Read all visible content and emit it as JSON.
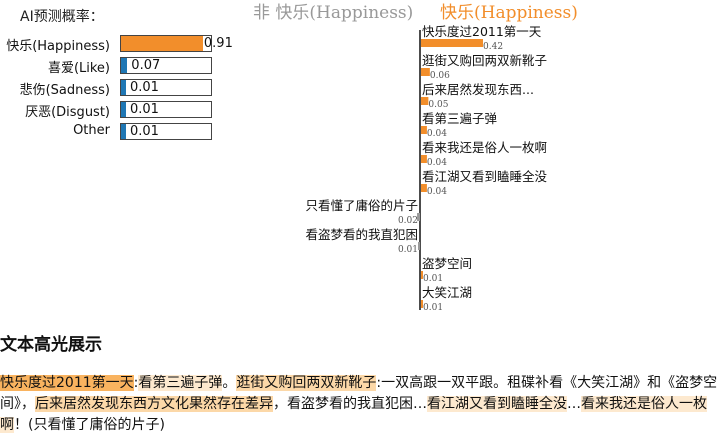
{
  "probability_panel": {
    "title": "AI预测概率：",
    "rows": [
      {
        "label": "快乐(Happiness)",
        "value": 0.91,
        "value_text": "0.91",
        "color": "#f28e2b"
      },
      {
        "label": "喜爱(Like)",
        "value": 0.07,
        "value_text": "0.07",
        "color": "#1f77b4"
      },
      {
        "label": "悲伤(Sadness)",
        "value": 0.01,
        "value_text": "0.01",
        "color": "#1f77b4"
      },
      {
        "label": "厌恶(Disgust)",
        "value": 0.01,
        "value_text": "0.01",
        "color": "#1f77b4"
      },
      {
        "label": "Other",
        "value": 0.01,
        "value_text": "0.01",
        "color": "#1f77b4"
      }
    ]
  },
  "contribution_chart": {
    "negative_title": "非 快乐(Happiness)",
    "positive_title": "快乐(Happiness)",
    "negative_color": "#999999",
    "positive_color": "#f28e2b"
  },
  "chart_data": {
    "type": "bar",
    "orientation": "horizontal-diverging",
    "title": "",
    "categories": [
      "快乐度过2011第一天",
      "逛街又购回两双新靴子",
      "后来居然发现东西...",
      "看第三遍子弹",
      "看来我还是俗人一枚啊",
      "看江湖又看到瞌睡全没",
      "只看懂了庸俗的片子",
      "看盗梦看的我直犯困",
      "盗梦空间",
      "大笑江湖"
    ],
    "values": [
      0.42,
      0.06,
      0.05,
      0.04,
      0.04,
      0.04,
      -0.02,
      -0.01,
      0.01,
      0.01
    ],
    "value_labels": [
      "0.42",
      "0.06",
      "0.05",
      "0.04",
      "0.04",
      "0.04",
      "0.02",
      "0.01",
      "0.01",
      "0.01"
    ],
    "xlim": [
      -0.45,
      0.45
    ]
  },
  "highlight_section": {
    "title": "文本高光展示",
    "segments": [
      {
        "text": "快乐度过2011第一天",
        "level": "strong"
      },
      {
        "text": ":",
        "level": "none"
      },
      {
        "text": "看第三遍子弹",
        "level": "light"
      },
      {
        "text": "。",
        "level": "none"
      },
      {
        "text": "逛街又购回两双新靴子",
        "level": "mid"
      },
      {
        "text": ":一双高跟一双平跟。租碟补看《大笑江湖》和《盗梦空间》，",
        "level": "none"
      },
      {
        "text": "后来居然发现东西方文化果然存在差异",
        "level": "mid"
      },
      {
        "text": "，看盗梦看的我直犯困…",
        "level": "none"
      },
      {
        "text": "看江湖又看到瞌睡全没",
        "level": "light"
      },
      {
        "text": "…",
        "level": "none"
      },
      {
        "text": "看来我还是俗人一枚啊",
        "level": "light"
      },
      {
        "text": "！(只看懂了庸俗的片子)",
        "level": "none"
      }
    ]
  }
}
